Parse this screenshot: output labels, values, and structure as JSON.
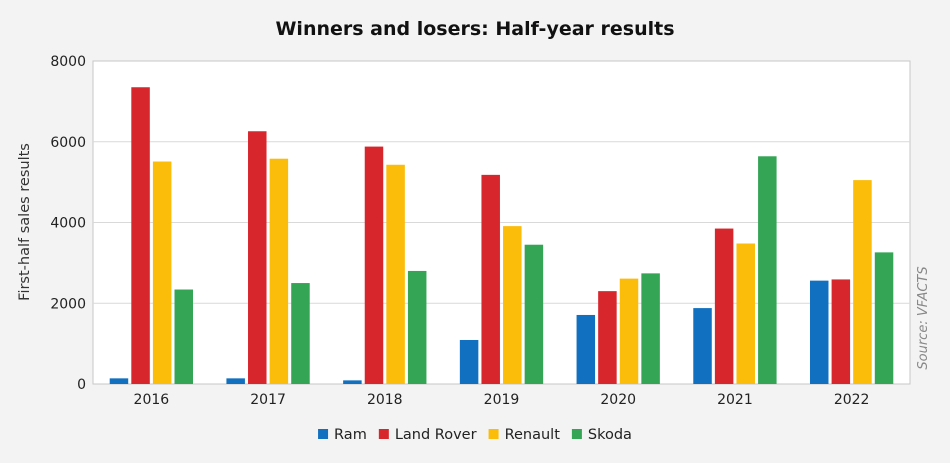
{
  "chart_data": {
    "type": "bar",
    "title": "Winners and losers: Half-year results",
    "xlabel": "",
    "ylabel": "First-half sales results",
    "categories": [
      "2016",
      "2017",
      "2018",
      "2019",
      "2020",
      "2021",
      "2022"
    ],
    "series": [
      {
        "name": "Ram",
        "color": "#1170bf",
        "values": [
          140,
          140,
          90,
          1090,
          1710,
          1880,
          2560
        ]
      },
      {
        "name": "Land Rover",
        "color": "#d7262c",
        "values": [
          7350,
          6260,
          5880,
          5180,
          2300,
          3850,
          2590
        ]
      },
      {
        "name": "Renault",
        "color": "#fbbc0a",
        "values": [
          5510,
          5580,
          5430,
          3910,
          2610,
          3480,
          5050
        ]
      },
      {
        "name": "Skoda",
        "color": "#33a555",
        "values": [
          2340,
          2500,
          2800,
          3450,
          2740,
          5640,
          3260
        ]
      }
    ],
    "ylim": [
      0,
      8000
    ],
    "yticks": [
      0,
      2000,
      4000,
      6000,
      8000
    ],
    "grid": true,
    "legend_position": "bottom",
    "source": "Source: VFACTS"
  }
}
